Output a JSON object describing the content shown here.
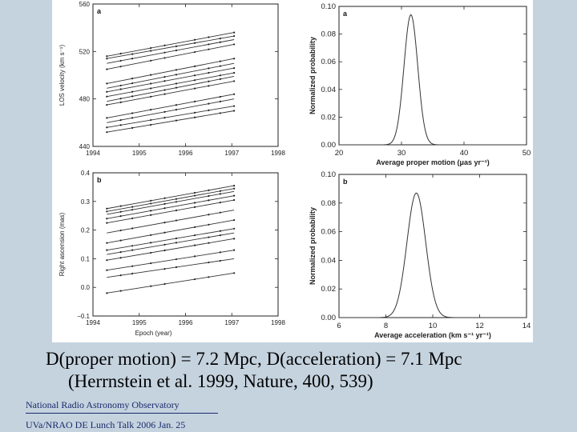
{
  "caption": {
    "line1": "D(proper motion) = 7.2 Mpc,  D(acceleration) = 7.1 Mpc",
    "line2": "(Herrnstein et al. 1999, Nature, 400, 539)"
  },
  "footer": {
    "org": "National Radio Astronomy Observatory",
    "talk": "UVa/NRAO DE Lunch Talk 2006 Jan. 25"
  },
  "chart_data": [
    {
      "type": "line",
      "panel_label": "a",
      "xlabel": "",
      "ylabel": "LOS velocity (km s⁻¹)",
      "xlim": [
        1994,
        1998
      ],
      "ylim": [
        440,
        560
      ],
      "xticks": [
        "1994",
        "1995",
        "1996",
        "1997",
        "1998"
      ],
      "yticks": [
        "440",
        "480",
        "520",
        "560"
      ],
      "series_start_year": 1994.3,
      "series_end_year": 1997.05,
      "series": [
        {
          "values": [
            516,
            536
          ]
        },
        {
          "values": [
            514,
            533
          ]
        },
        {
          "values": [
            510,
            530
          ]
        },
        {
          "values": [
            505,
            526
          ]
        },
        {
          "values": [
            493,
            514
          ]
        },
        {
          "values": [
            489,
            510
          ]
        },
        {
          "values": [
            486,
            506
          ]
        },
        {
          "values": [
            482,
            502
          ]
        },
        {
          "values": [
            478,
            499
          ]
        },
        {
          "values": [
            475,
            495
          ]
        },
        {
          "values": [
            464,
            484
          ]
        },
        {
          "values": [
            460,
            480
          ]
        },
        {
          "values": [
            456,
            474
          ]
        },
        {
          "values": [
            452,
            470
          ]
        }
      ]
    },
    {
      "type": "line",
      "panel_label": "b",
      "xlabel": "Epoch (year)",
      "ylabel": "Right ascension (mas)",
      "xlim": [
        1994,
        1998
      ],
      "ylim": [
        -0.1,
        0.4
      ],
      "xticks": [
        "1994",
        "1995",
        "1996",
        "1997",
        "1998"
      ],
      "yticks": [
        "−0.1",
        "0.0",
        "0.1",
        "0.2",
        "0.3",
        "0.4"
      ],
      "series_start_year": 1994.3,
      "series_end_year": 1997.05,
      "series": [
        {
          "values": [
            0.275,
            0.355
          ]
        },
        {
          "values": [
            0.265,
            0.345
          ]
        },
        {
          "values": [
            0.255,
            0.335
          ]
        },
        {
          "values": [
            0.24,
            0.32
          ]
        },
        {
          "values": [
            0.225,
            0.305
          ]
        },
        {
          "values": [
            0.19,
            0.27
          ]
        },
        {
          "values": [
            0.155,
            0.235
          ]
        },
        {
          "values": [
            0.13,
            0.205
          ]
        },
        {
          "values": [
            0.115,
            0.19
          ]
        },
        {
          "values": [
            0.095,
            0.17
          ]
        },
        {
          "values": [
            0.06,
            0.13
          ]
        },
        {
          "values": [
            0.035,
            0.1
          ]
        },
        {
          "values": [
            -0.02,
            0.05
          ]
        }
      ]
    },
    {
      "type": "line",
      "panel_label": "a",
      "xlabel": "Average proper motion (μas yr⁻¹)",
      "ylabel": "Normalized probability",
      "xlim": [
        20,
        50
      ],
      "ylim": [
        0,
        0.1
      ],
      "xticks": [
        "20",
        "30",
        "40",
        "50"
      ],
      "yticks": [
        "0.00",
        "0.02",
        "0.04",
        "0.06",
        "0.08",
        "0.10"
      ],
      "distribution": {
        "center": 31.5,
        "sigma": 1.1,
        "peak": 0.094
      }
    },
    {
      "type": "line",
      "panel_label": "b",
      "xlabel": "Average acceleration (km s⁻¹ yr⁻¹)",
      "ylabel": "Normalized probability",
      "xlim": [
        6,
        14
      ],
      "ylim": [
        0,
        0.1
      ],
      "xticks": [
        "6",
        "8",
        "10",
        "12",
        "14"
      ],
      "yticks": [
        "0.00",
        "0.02",
        "0.04",
        "0.06",
        "0.08",
        "0.10"
      ],
      "distribution": {
        "center": 9.3,
        "sigma": 0.4,
        "peak": 0.087
      }
    }
  ]
}
